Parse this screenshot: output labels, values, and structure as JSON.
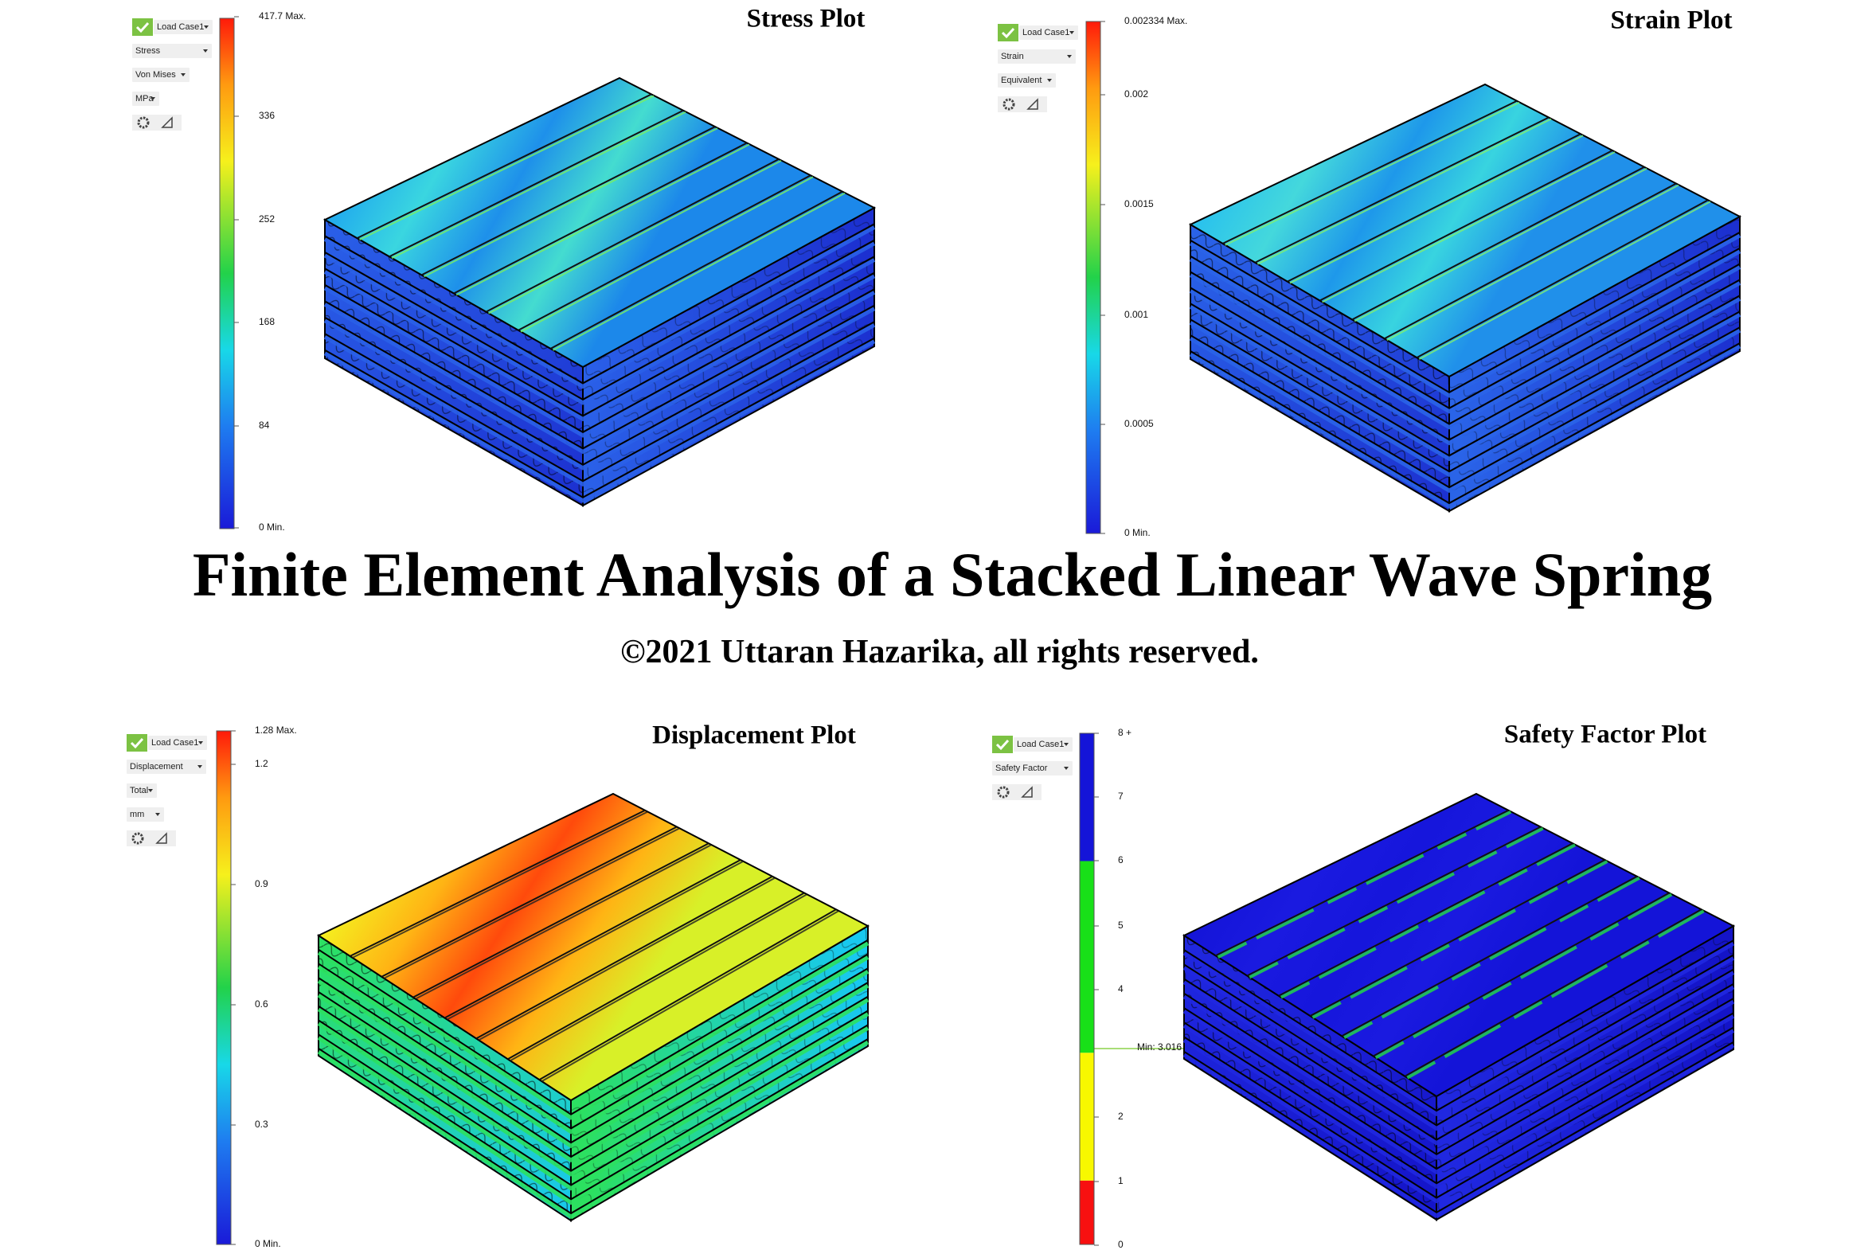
{
  "title": "Finite Element Analysis of a Stacked Linear Wave Spring",
  "subtitle": "©2021 Uttaran Hazarika, all rights reserved.",
  "panels": [
    {
      "title": "Stress Plot",
      "load_case": "Load Case1",
      "controls": [
        "Stress",
        "Von Mises",
        "MPa"
      ],
      "legend": [
        "417.7 Max.",
        "336",
        "252",
        "168",
        "84",
        "0 Min."
      ]
    },
    {
      "title": "Strain Plot",
      "load_case": "Load Case1",
      "controls": [
        "Strain",
        "Equivalent"
      ],
      "legend": [
        "0.002334 Max.",
        "0.002",
        "0.0015",
        "0.001",
        "0.0005",
        "0 Min."
      ]
    },
    {
      "title": "Displacement Plot",
      "load_case": "Load Case1",
      "controls": [
        "Displacement",
        "Total",
        "mm"
      ],
      "legend": [
        "1.28 Max.",
        "1.2",
        "0.9",
        "0.6",
        "0.3",
        "0 Min."
      ]
    },
    {
      "title": "Safety Factor Plot",
      "load_case": "Load Case1",
      "controls": [
        "Safety Factor"
      ],
      "legend": [
        "8 +",
        "7",
        "6",
        "5",
        "4",
        "2",
        "1",
        "0"
      ],
      "min_marker": "Min: 3.016"
    }
  ]
}
